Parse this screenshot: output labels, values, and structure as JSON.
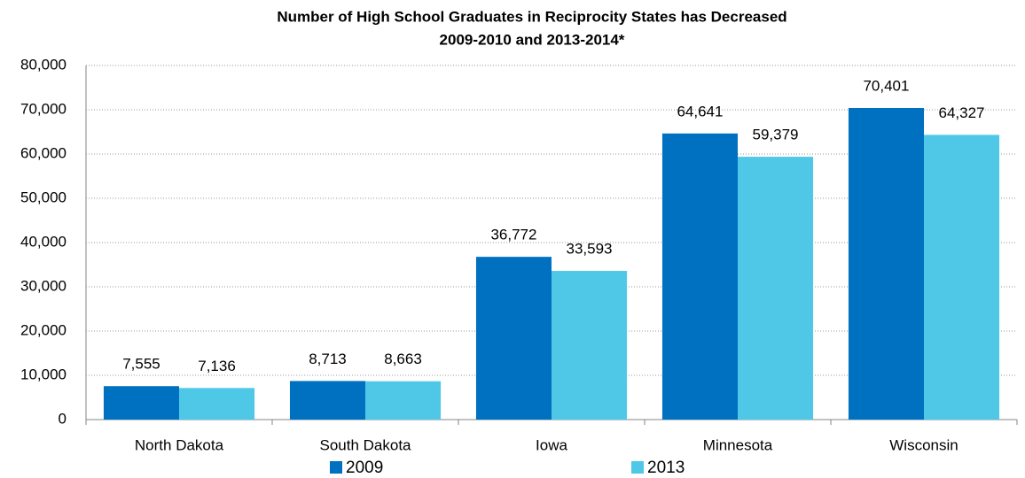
{
  "chart_data": {
    "type": "bar",
    "title": "Number of High School Graduates in Reciprocity States has Decreased",
    "subtitle": "2009-2010 and 2013-2014*",
    "categories": [
      "North Dakota",
      "South Dakota",
      "Iowa",
      "Minnesota",
      "Wisconsin"
    ],
    "series": [
      {
        "name": "2009",
        "color": "#0070c0",
        "values": [
          7555,
          8713,
          36772,
          64641,
          70401
        ],
        "value_labels": [
          "7,555",
          "8,713",
          "36,772",
          "64,641",
          "70,401"
        ]
      },
      {
        "name": "2013",
        "color": "#4fc8e8",
        "values": [
          7136,
          8663,
          33593,
          59379,
          64327
        ],
        "value_labels": [
          "7,136",
          "8,663",
          "33,593",
          "59,379",
          "64,327"
        ]
      }
    ],
    "ylim": [
      0,
      80000
    ],
    "yticks": [
      0,
      {
        "value": 10000,
        "label": "10,000"
      },
      {
        "value": 20000,
        "label": "20,000"
      },
      {
        "value": 30000,
        "label": "30,000"
      },
      {
        "value": 40000,
        "label": "40,000"
      },
      {
        "value": 50000,
        "label": "50,000"
      },
      {
        "value": 60000,
        "label": "60,000"
      },
      {
        "value": 70000,
        "label": "70,000"
      },
      {
        "value": 80000,
        "label": "80,000"
      }
    ],
    "grid": true,
    "legend": "bottom"
  }
}
